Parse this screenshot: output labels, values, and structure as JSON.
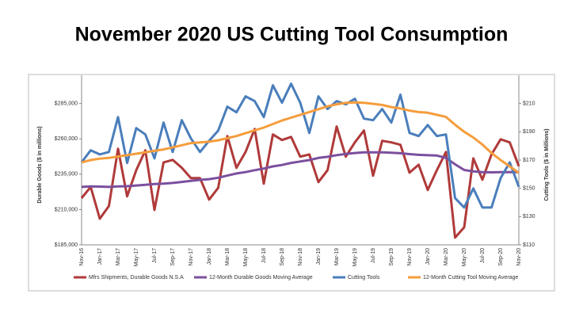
{
  "chart_data": {
    "type": "line",
    "title": "November 2020 US Cutting Tool Consumption",
    "ylabel": "Durable Goods ($ in millions)",
    "y2label": "Cutting Tools ($ in Millions)",
    "categories": [
      "Nov-16",
      null,
      "Jan-17",
      null,
      "Mar-17",
      null,
      "May-17",
      null,
      "Jul-17",
      null,
      "Sep-17",
      null,
      "Nov-17",
      null,
      "Jan-18",
      null,
      "Mar-18",
      null,
      "May-18",
      null,
      "Jul-18",
      null,
      "Sep-18",
      null,
      "Nov-18",
      null,
      "Jan-19",
      null,
      "Mar-19",
      null,
      "May-19",
      null,
      "Jul-19",
      null,
      "Sep-19",
      null,
      "Nov-19",
      null,
      "Jan-20",
      null,
      "Mar-20",
      null,
      "May-20",
      null,
      "Jul-20",
      null,
      "Sep-20",
      null,
      "Nov-20"
    ],
    "ylim": [
      185000,
      305000
    ],
    "yticks": [
      {
        "value": 185000,
        "label": "$185,000"
      },
      {
        "value": 210000,
        "label": "$210,000"
      },
      {
        "value": 235000,
        "label": "$235,000"
      },
      {
        "value": 260000,
        "label": "$260,000"
      },
      {
        "value": 285000,
        "label": "$285,000"
      }
    ],
    "y2lim": [
      110,
      230
    ],
    "y2ticks": [
      {
        "value": 110,
        "label": "$110"
      },
      {
        "value": 130,
        "label": "$130"
      },
      {
        "value": 150,
        "label": "$150"
      },
      {
        "value": 170,
        "label": "$170"
      },
      {
        "value": 190,
        "label": "$190"
      },
      {
        "value": 210,
        "label": "$210"
      }
    ],
    "series": [
      {
        "name": "Mfrs Shipments, Durable Goods N.S.A",
        "color": "#b03a3a",
        "axis": "y",
        "values": [
          218100,
          226000,
          203500,
          212500,
          253000,
          219300,
          237800,
          251900,
          209700,
          243400,
          245100,
          239500,
          232200,
          232200,
          217000,
          225400,
          262000,
          239500,
          250700,
          267000,
          228300,
          263100,
          259200,
          261400,
          247400,
          249000,
          229400,
          237800,
          268700,
          247400,
          257500,
          265900,
          233900,
          258600,
          257500,
          255800,
          236100,
          241700,
          223800,
          237800,
          250700,
          190100,
          197400,
          246200,
          231100,
          249000,
          259700,
          257500,
          240600
        ]
      },
      {
        "name": "12-Month Durable Goods Moving Average",
        "color": "#7b4f9e",
        "axis": "y",
        "values": [
          226000,
          226300,
          226200,
          226000,
          226300,
          226500,
          227000,
          227500,
          228000,
          228300,
          228800,
          229500,
          230300,
          231000,
          231500,
          232500,
          234000,
          235500,
          236500,
          237800,
          239000,
          240500,
          241500,
          243000,
          244000,
          245000,
          246500,
          247300,
          248500,
          249300,
          250000,
          250500,
          250500,
          250500,
          250200,
          249800,
          249200,
          248700,
          248400,
          248200,
          246500,
          242000,
          238000,
          237000,
          236500,
          236300,
          236400,
          236500,
          236500
        ]
      },
      {
        "name": "Cutting Tools",
        "color": "#4a7ebb",
        "axis": "y2",
        "values": [
          168.4,
          176.9,
          174,
          175.7,
          200.4,
          167.9,
          192.6,
          188.1,
          171.2,
          196.5,
          175.7,
          198.2,
          185.3,
          175.7,
          183.6,
          190.9,
          207.8,
          203.8,
          215.1,
          211.7,
          200.4,
          222.9,
          210.6,
          224,
          210.6,
          189.2,
          215.1,
          206.1,
          211.7,
          209.4,
          213.4,
          199.3,
          198.2,
          206.1,
          196.5,
          216.2,
          189.2,
          187,
          194.8,
          187,
          188.1,
          143.1,
          136.4,
          149.9,
          136.4,
          136.4,
          157.2,
          168.4,
          151
        ]
      },
      {
        "name": "12-Month Cutting Tool Moving Average",
        "color": "#f59d3d",
        "axis": "y2",
        "values": [
          168.4,
          170,
          171,
          171.5,
          172.5,
          173.5,
          174.5,
          175.5,
          176.5,
          177.5,
          179,
          180.5,
          182,
          182.5,
          183,
          184,
          185.5,
          187,
          189,
          191,
          193,
          195.5,
          198,
          200,
          202,
          204,
          206,
          208,
          209.5,
          210.5,
          210.8,
          210.5,
          209.8,
          209,
          207.5,
          206.5,
          205,
          204,
          203.5,
          202,
          200.5,
          195,
          190,
          186,
          181,
          175,
          170,
          165.5,
          161
        ]
      }
    ]
  }
}
